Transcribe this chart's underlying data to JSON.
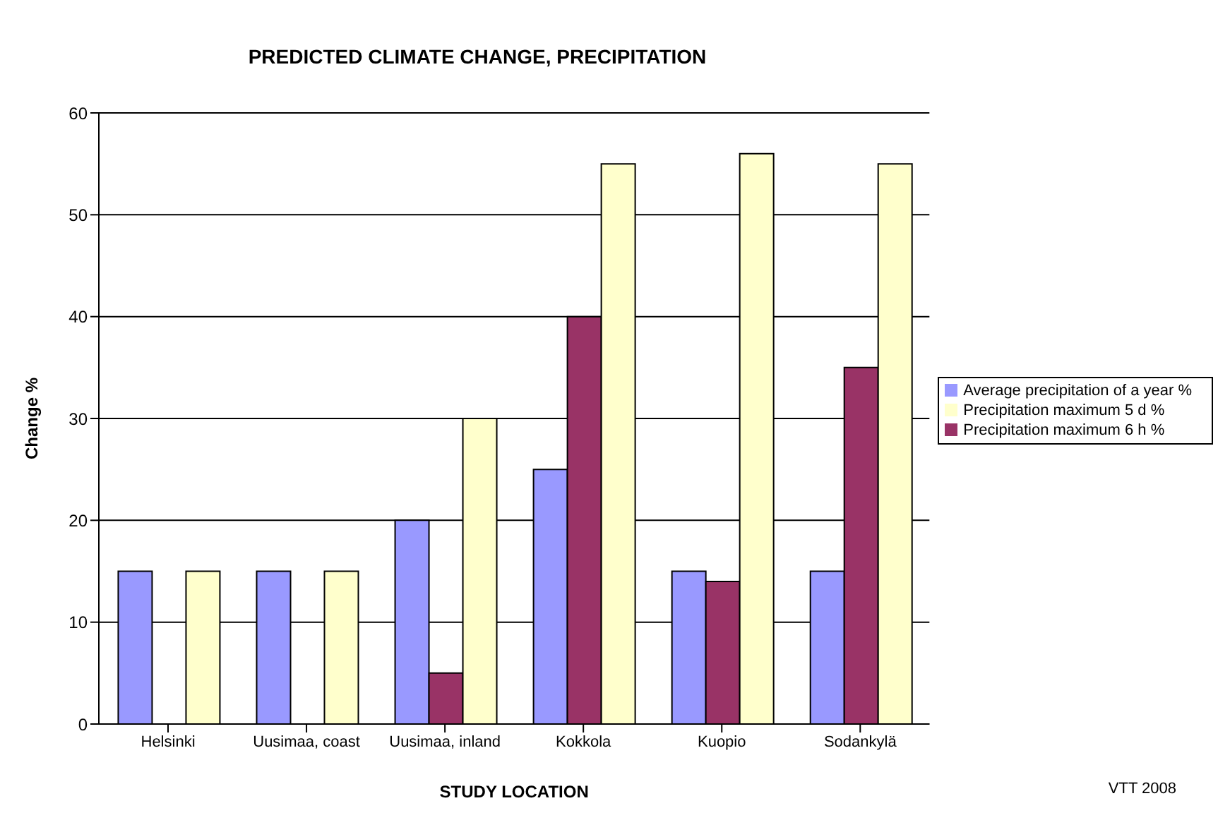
{
  "chart_data": {
    "type": "bar",
    "title": "PREDICTED CLIMATE CHANGE, PRECIPITATION",
    "xlabel": "STUDY LOCATION",
    "ylabel": "Change %",
    "categories": [
      "Helsinki",
      "Uusimaa, coast",
      "Uusimaa, inland",
      "Kokkola",
      "Kuopio",
      "Sodankylä"
    ],
    "series": [
      {
        "name": "Average precipitation of a year %",
        "color": "#9999ff",
        "values": [
          15,
          15,
          20,
          25,
          15,
          15
        ]
      },
      {
        "name": "Precipitation maximum 6 h %",
        "color": "#993366",
        "values": [
          null,
          null,
          5,
          40,
          14,
          35
        ]
      },
      {
        "name": "Precipitation maximum 5 d %",
        "color": "#ffffcc",
        "values": [
          15,
          15,
          30,
          55,
          56,
          55
        ]
      }
    ],
    "ylim": [
      0,
      60
    ],
    "yticks": [
      0,
      10,
      20,
      30,
      40,
      50,
      60
    ],
    "grid": "y",
    "legend": "right",
    "annotations": [
      "VTT 2008"
    ]
  }
}
